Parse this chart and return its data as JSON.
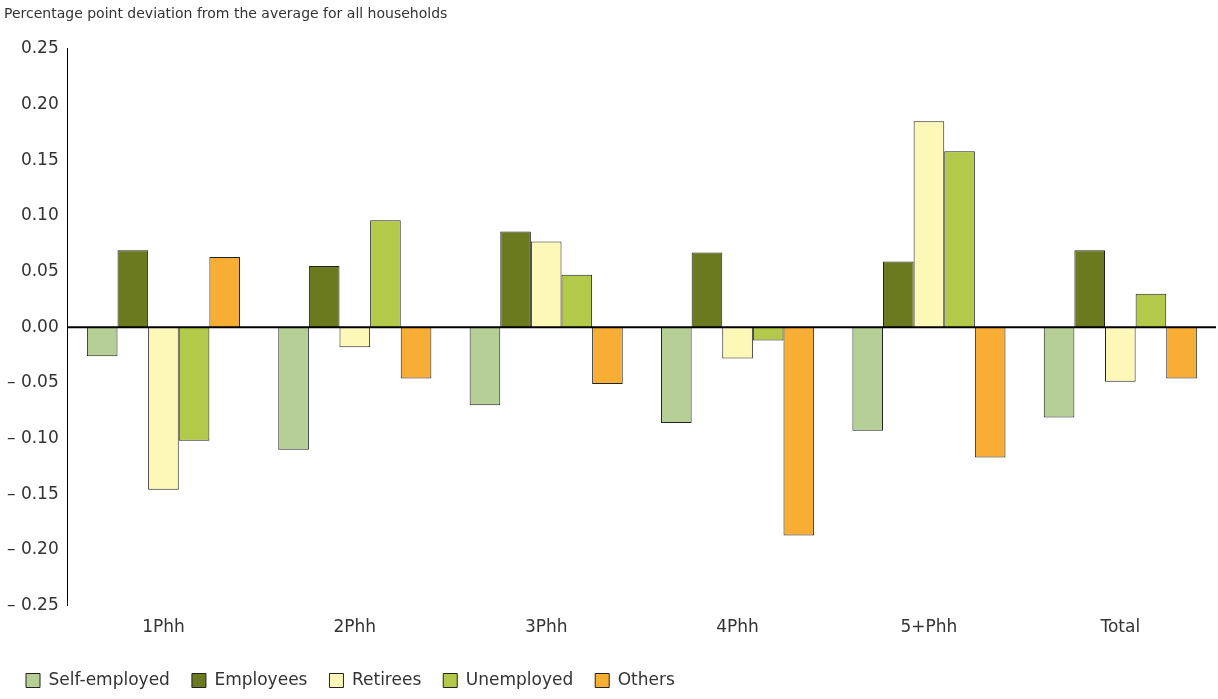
{
  "chart_data": {
    "type": "bar",
    "ylabel": "Percentage point deviation from the average for all households",
    "categories": [
      "1Phh",
      "2Phh",
      "3Phh",
      "4Phh",
      "5+Phh",
      "Total"
    ],
    "series": [
      {
        "name": "Self-employed",
        "color": "#b5cf96",
        "values": [
          -0.026,
          -0.11,
          -0.07,
          -0.086,
          -0.093,
          -0.081
        ]
      },
      {
        "name": "Employees",
        "color": "#6b7a1f",
        "values": [
          0.069,
          0.055,
          0.086,
          0.067,
          0.059,
          0.069
        ]
      },
      {
        "name": "Retirees",
        "color": "#fdf7b8",
        "values": [
          -0.146,
          -0.018,
          0.077,
          -0.028,
          0.185,
          -0.049
        ]
      },
      {
        "name": "Unemployed",
        "color": "#b2c94a",
        "values": [
          -0.102,
          0.096,
          0.047,
          -0.012,
          0.158,
          0.03
        ]
      },
      {
        "name": "Others",
        "color": "#f8ae35",
        "values": [
          0.063,
          -0.046,
          -0.051,
          -0.187,
          -0.117,
          -0.046
        ]
      }
    ],
    "ylim": [
      -0.25,
      0.25
    ],
    "yticks": [
      {
        "value": -0.25,
        "label": "– 0.25"
      },
      {
        "value": -0.2,
        "label": "– 0.20"
      },
      {
        "value": -0.15,
        "label": "– 0.15"
      },
      {
        "value": -0.1,
        "label": "– 0.10"
      },
      {
        "value": -0.05,
        "label": "– 0.05"
      },
      {
        "value": 0,
        "label": "0.00"
      },
      {
        "value": 0.05,
        "label": "0.05"
      },
      {
        "value": 0.1,
        "label": "0.10"
      },
      {
        "value": 0.15,
        "label": "0.15"
      },
      {
        "value": 0.2,
        "label": "0.20"
      },
      {
        "value": 0.25,
        "label": "0.25"
      }
    ],
    "ref_lines": [
      {
        "axis": "y",
        "value": 0,
        "color": "#000000"
      }
    ],
    "grid": false,
    "legend": "bottom left"
  }
}
